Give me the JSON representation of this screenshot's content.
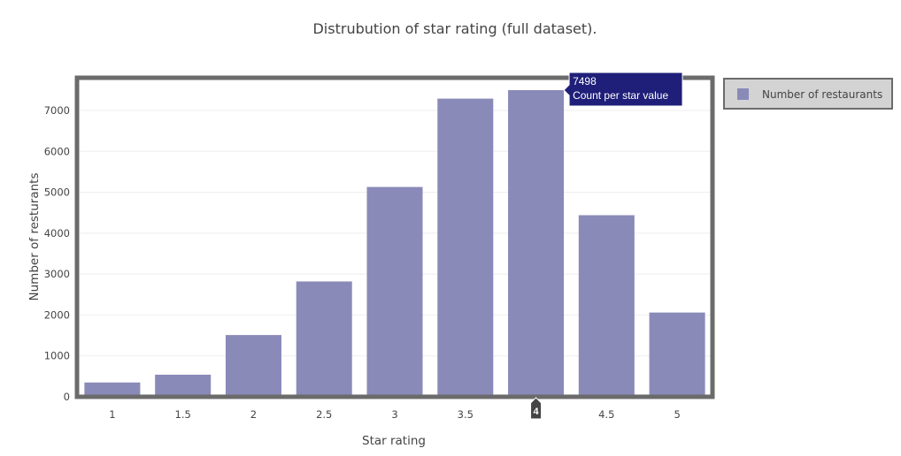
{
  "chart_data": {
    "type": "bar",
    "title": "Distrubution of star rating (full dataset).",
    "xlabel": "Star rating",
    "ylabel": "Number of resturants",
    "categories": [
      "1",
      "1.5",
      "2",
      "2.5",
      "3",
      "3.5",
      "4",
      "4.5",
      "5"
    ],
    "series": [
      {
        "name": "Number of restaurants",
        "values": [
          350,
          540,
          1510,
          2820,
          5130,
          7290,
          7498,
          4440,
          2060
        ],
        "color": "#8a8ab9"
      }
    ],
    "ylim": [
      0,
      7800
    ],
    "yticks": [
      0,
      1000,
      2000,
      3000,
      4000,
      5000,
      6000,
      7000
    ],
    "grid": true,
    "legend_position": "top-right",
    "hover": {
      "category": "4",
      "value_label": "7498",
      "series_label": "Count per star value",
      "color": "#1f1f7a"
    }
  }
}
